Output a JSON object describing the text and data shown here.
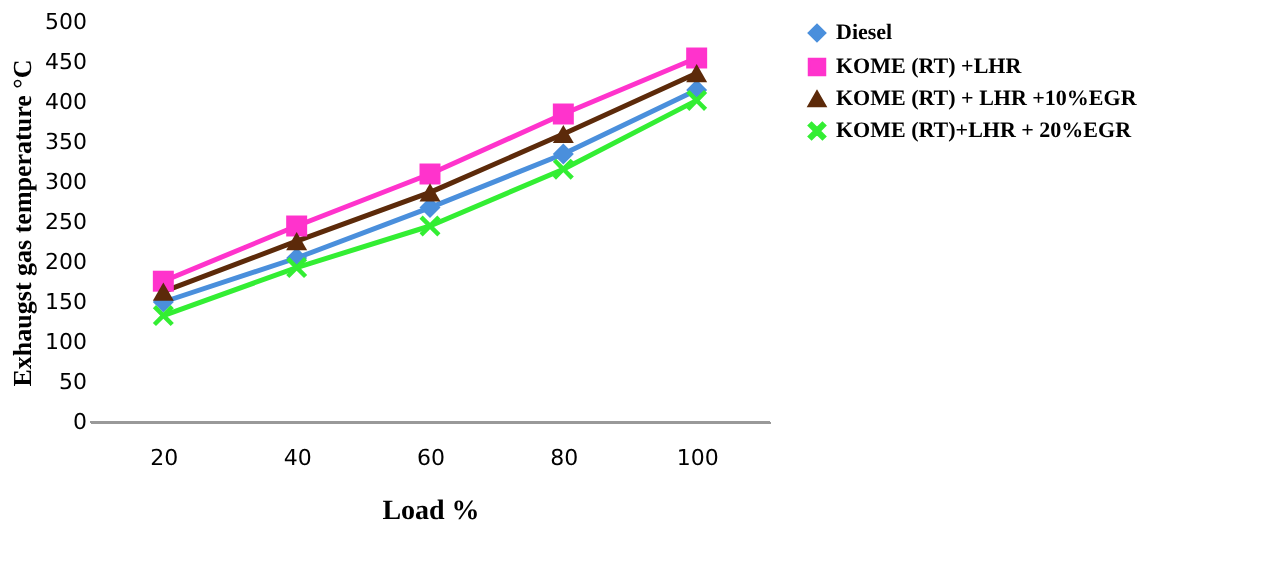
{
  "chart_data": {
    "type": "line",
    "xlabel": "Load %",
    "ylabel": "Exhaugst gas temperature °C",
    "categories": [
      "20",
      "40",
      "60",
      "80",
      "100"
    ],
    "ylim": [
      0,
      500
    ],
    "yticks": [
      0,
      50,
      100,
      150,
      200,
      250,
      300,
      350,
      400,
      450,
      500
    ],
    "grid": false,
    "legend": "right",
    "series": [
      {
        "name": "Diesel",
        "color": "#4a8fdc",
        "marker": "diamond",
        "values": [
          150,
          205,
          268,
          335,
          415
        ]
      },
      {
        "name": "KOME (RT) +LHR",
        "color": "#ff33cc",
        "marker": "square",
        "values": [
          176,
          245,
          310,
          385,
          455
        ]
      },
      {
        "name": "KOME (RT) + LHR +10%EGR",
        "color": "#5c2a0a",
        "marker": "triangle",
        "values": [
          163,
          226,
          287,
          360,
          436
        ]
      },
      {
        "name": "KOME (RT)+LHR + 20%EGR",
        "color": "#33ee33",
        "marker": "cross",
        "values": [
          133,
          193,
          245,
          316,
          402
        ]
      }
    ]
  }
}
